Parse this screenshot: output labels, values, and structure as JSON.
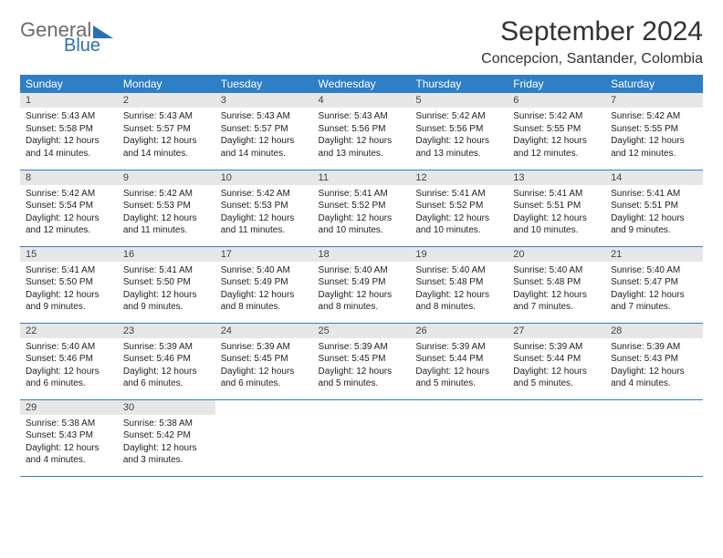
{
  "logo": {
    "word1": "General",
    "word2": "Blue"
  },
  "title": "September 2024",
  "location": "Concepcion, Santander, Colombia",
  "colors": {
    "header_bg": "#2f7fc7",
    "header_text": "#ffffff",
    "daynum_bg": "#e7e7e7",
    "row_border": "#2f7fc7",
    "logo_gray": "#6b6b6b",
    "logo_blue": "#2b6fb3"
  },
  "weekdays": [
    "Sunday",
    "Monday",
    "Tuesday",
    "Wednesday",
    "Thursday",
    "Friday",
    "Saturday"
  ],
  "weeks": [
    [
      {
        "n": "1",
        "sr": "Sunrise: 5:43 AM",
        "ss": "Sunset: 5:58 PM",
        "d1": "Daylight: 12 hours",
        "d2": "and 14 minutes."
      },
      {
        "n": "2",
        "sr": "Sunrise: 5:43 AM",
        "ss": "Sunset: 5:57 PM",
        "d1": "Daylight: 12 hours",
        "d2": "and 14 minutes."
      },
      {
        "n": "3",
        "sr": "Sunrise: 5:43 AM",
        "ss": "Sunset: 5:57 PM",
        "d1": "Daylight: 12 hours",
        "d2": "and 14 minutes."
      },
      {
        "n": "4",
        "sr": "Sunrise: 5:43 AM",
        "ss": "Sunset: 5:56 PM",
        "d1": "Daylight: 12 hours",
        "d2": "and 13 minutes."
      },
      {
        "n": "5",
        "sr": "Sunrise: 5:42 AM",
        "ss": "Sunset: 5:56 PM",
        "d1": "Daylight: 12 hours",
        "d2": "and 13 minutes."
      },
      {
        "n": "6",
        "sr": "Sunrise: 5:42 AM",
        "ss": "Sunset: 5:55 PM",
        "d1": "Daylight: 12 hours",
        "d2": "and 12 minutes."
      },
      {
        "n": "7",
        "sr": "Sunrise: 5:42 AM",
        "ss": "Sunset: 5:55 PM",
        "d1": "Daylight: 12 hours",
        "d2": "and 12 minutes."
      }
    ],
    [
      {
        "n": "8",
        "sr": "Sunrise: 5:42 AM",
        "ss": "Sunset: 5:54 PM",
        "d1": "Daylight: 12 hours",
        "d2": "and 12 minutes."
      },
      {
        "n": "9",
        "sr": "Sunrise: 5:42 AM",
        "ss": "Sunset: 5:53 PM",
        "d1": "Daylight: 12 hours",
        "d2": "and 11 minutes."
      },
      {
        "n": "10",
        "sr": "Sunrise: 5:42 AM",
        "ss": "Sunset: 5:53 PM",
        "d1": "Daylight: 12 hours",
        "d2": "and 11 minutes."
      },
      {
        "n": "11",
        "sr": "Sunrise: 5:41 AM",
        "ss": "Sunset: 5:52 PM",
        "d1": "Daylight: 12 hours",
        "d2": "and 10 minutes."
      },
      {
        "n": "12",
        "sr": "Sunrise: 5:41 AM",
        "ss": "Sunset: 5:52 PM",
        "d1": "Daylight: 12 hours",
        "d2": "and 10 minutes."
      },
      {
        "n": "13",
        "sr": "Sunrise: 5:41 AM",
        "ss": "Sunset: 5:51 PM",
        "d1": "Daylight: 12 hours",
        "d2": "and 10 minutes."
      },
      {
        "n": "14",
        "sr": "Sunrise: 5:41 AM",
        "ss": "Sunset: 5:51 PM",
        "d1": "Daylight: 12 hours",
        "d2": "and 9 minutes."
      }
    ],
    [
      {
        "n": "15",
        "sr": "Sunrise: 5:41 AM",
        "ss": "Sunset: 5:50 PM",
        "d1": "Daylight: 12 hours",
        "d2": "and 9 minutes."
      },
      {
        "n": "16",
        "sr": "Sunrise: 5:41 AM",
        "ss": "Sunset: 5:50 PM",
        "d1": "Daylight: 12 hours",
        "d2": "and 9 minutes."
      },
      {
        "n": "17",
        "sr": "Sunrise: 5:40 AM",
        "ss": "Sunset: 5:49 PM",
        "d1": "Daylight: 12 hours",
        "d2": "and 8 minutes."
      },
      {
        "n": "18",
        "sr": "Sunrise: 5:40 AM",
        "ss": "Sunset: 5:49 PM",
        "d1": "Daylight: 12 hours",
        "d2": "and 8 minutes."
      },
      {
        "n": "19",
        "sr": "Sunrise: 5:40 AM",
        "ss": "Sunset: 5:48 PM",
        "d1": "Daylight: 12 hours",
        "d2": "and 8 minutes."
      },
      {
        "n": "20",
        "sr": "Sunrise: 5:40 AM",
        "ss": "Sunset: 5:48 PM",
        "d1": "Daylight: 12 hours",
        "d2": "and 7 minutes."
      },
      {
        "n": "21",
        "sr": "Sunrise: 5:40 AM",
        "ss": "Sunset: 5:47 PM",
        "d1": "Daylight: 12 hours",
        "d2": "and 7 minutes."
      }
    ],
    [
      {
        "n": "22",
        "sr": "Sunrise: 5:40 AM",
        "ss": "Sunset: 5:46 PM",
        "d1": "Daylight: 12 hours",
        "d2": "and 6 minutes."
      },
      {
        "n": "23",
        "sr": "Sunrise: 5:39 AM",
        "ss": "Sunset: 5:46 PM",
        "d1": "Daylight: 12 hours",
        "d2": "and 6 minutes."
      },
      {
        "n": "24",
        "sr": "Sunrise: 5:39 AM",
        "ss": "Sunset: 5:45 PM",
        "d1": "Daylight: 12 hours",
        "d2": "and 6 minutes."
      },
      {
        "n": "25",
        "sr": "Sunrise: 5:39 AM",
        "ss": "Sunset: 5:45 PM",
        "d1": "Daylight: 12 hours",
        "d2": "and 5 minutes."
      },
      {
        "n": "26",
        "sr": "Sunrise: 5:39 AM",
        "ss": "Sunset: 5:44 PM",
        "d1": "Daylight: 12 hours",
        "d2": "and 5 minutes."
      },
      {
        "n": "27",
        "sr": "Sunrise: 5:39 AM",
        "ss": "Sunset: 5:44 PM",
        "d1": "Daylight: 12 hours",
        "d2": "and 5 minutes."
      },
      {
        "n": "28",
        "sr": "Sunrise: 5:39 AM",
        "ss": "Sunset: 5:43 PM",
        "d1": "Daylight: 12 hours",
        "d2": "and 4 minutes."
      }
    ],
    [
      {
        "n": "29",
        "sr": "Sunrise: 5:38 AM",
        "ss": "Sunset: 5:43 PM",
        "d1": "Daylight: 12 hours",
        "d2": "and 4 minutes."
      },
      {
        "n": "30",
        "sr": "Sunrise: 5:38 AM",
        "ss": "Sunset: 5:42 PM",
        "d1": "Daylight: 12 hours",
        "d2": "and 3 minutes."
      },
      null,
      null,
      null,
      null,
      null
    ]
  ]
}
